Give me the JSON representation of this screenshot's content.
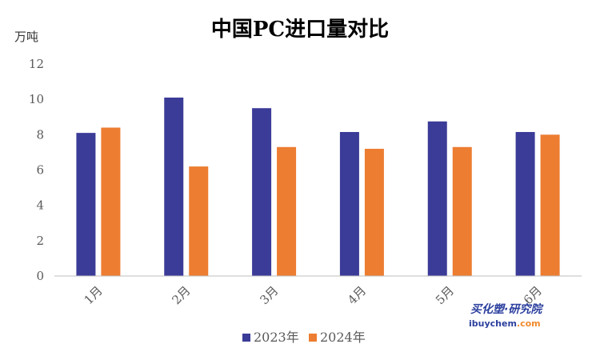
{
  "chart_data": {
    "type": "bar",
    "title": "中国PC进口量对比",
    "ylabel": "万吨",
    "xlabel": "",
    "categories": [
      "1月",
      "2月",
      "3月",
      "4月",
      "5月",
      "6月"
    ],
    "series": [
      {
        "name": "2023年",
        "color": "#3b3b98",
        "values": [
          8.1,
          10.1,
          9.5,
          8.15,
          8.75,
          8.15
        ]
      },
      {
        "name": "2024年",
        "color": "#ed7d31",
        "values": [
          8.4,
          6.2,
          7.3,
          7.2,
          7.3,
          8.0
        ]
      }
    ],
    "ylim": [
      0,
      12
    ],
    "yticks": [
      0,
      2,
      4,
      6,
      8,
      10,
      12
    ],
    "grid": false,
    "legend": "bottom-center"
  },
  "watermark": {
    "brand_cn": "买化塑·研究院",
    "site_main": "ibuychem",
    "site_tld": ".com"
  }
}
